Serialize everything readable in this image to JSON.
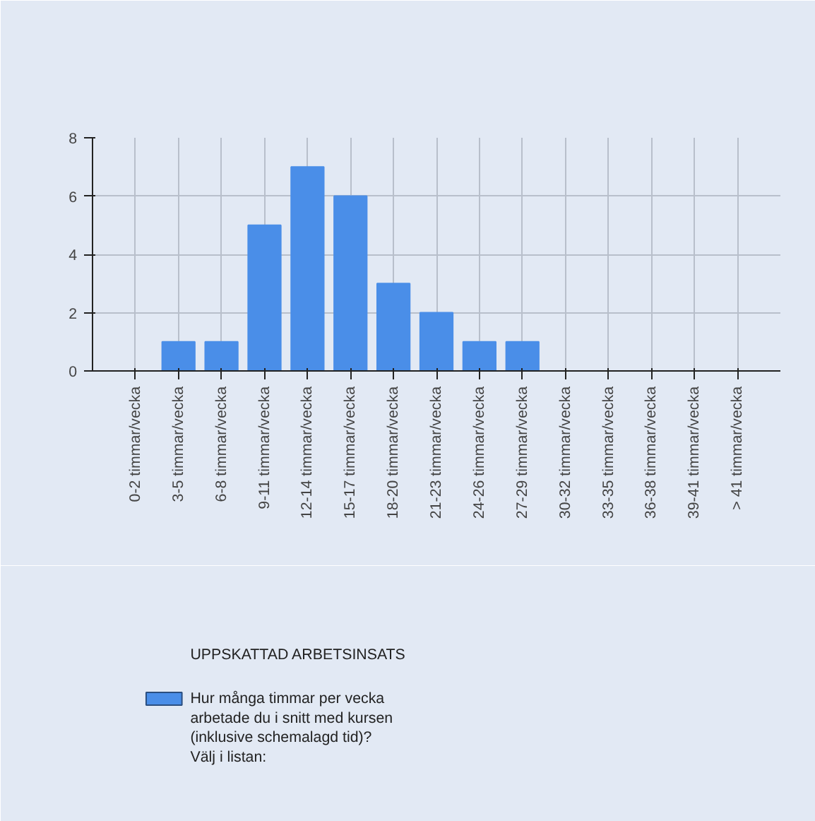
{
  "chart_data": {
    "type": "bar",
    "legend_title": "UPPSKATTAD ARBETSINSATS",
    "categories": [
      "0-2 timmar/vecka",
      "3-5 timmar/vecka",
      "6-8 timmar/vecka",
      "9-11 timmar/vecka",
      "12-14 timmar/vecka",
      "15-17 timmar/vecka",
      "18-20 timmar/vecka",
      "21-23 timmar/vecka",
      "24-26 timmar/vecka",
      "27-29 timmar/vecka",
      "30-32 timmar/vecka",
      "33-35 timmar/vecka",
      "36-38 timmar/vecka",
      "39-41 timmar/vecka",
      "> 41 timmar/vecka"
    ],
    "series": [
      {
        "name": "Hur många timmar per vecka arbetade du i snitt med kursen (inklusive schemalagd tid)? Välj i listan:",
        "color": "#4a8ee8",
        "values": [
          0,
          1,
          1,
          5,
          7,
          6,
          3,
          2,
          1,
          1,
          0,
          0,
          0,
          0,
          0
        ]
      }
    ],
    "ylim": [
      0,
      8
    ],
    "yticks": [
      0,
      2,
      4,
      6,
      8
    ],
    "grid": true,
    "legend": "bottom"
  }
}
